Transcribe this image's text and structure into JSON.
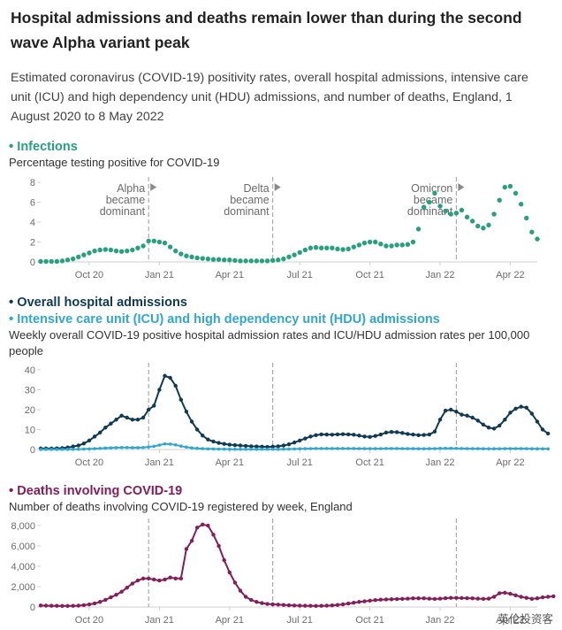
{
  "title": "Hospital admissions and deaths remain lower than during the second wave Alpha variant peak",
  "subtitle": "Estimated coronavirus (COVID-19) positivity rates, overall hospital admissions, intensive care unit (ICU) and high dependency unit (HDU) admissions, and number of deaths, England, 1 August 2020 to 8 May 2022",
  "watermark": "英伦投资客",
  "colors": {
    "infections": "#27a07f",
    "hospital": "#0f3a55",
    "icu": "#2fa7cf",
    "deaths": "#841d59",
    "axis": "#cfcfcf",
    "text": "#6b6b6b"
  },
  "x_ticks": [
    "Oct 20",
    "Jan 21",
    "Apr 21",
    "Jul 21",
    "Oct 21",
    "Jan 22",
    "Apr 22"
  ],
  "annotations": [
    {
      "label": [
        "Alpha",
        "became",
        "dominant"
      ],
      "date_index": 20
    },
    {
      "label": [
        "Delta",
        "became",
        "dominant"
      ],
      "date_index": 43
    },
    {
      "label": [
        "Omicron",
        "became",
        "dominant"
      ],
      "date_index": 77
    }
  ],
  "panels": {
    "infections": {
      "title": "Infections",
      "subtitle": "Percentage testing positive for COVID-19"
    },
    "hospital": {
      "title": "Overall hospital admissions",
      "title2": "Intensive care unit (ICU) and high dependency unit (HDU) admissions",
      "subtitle": "Weekly overall COVID-19 positive hospital admission rates and ICU/HDU admission rates per 100,000 people"
    },
    "deaths": {
      "title": "Deaths involving COVID-19",
      "subtitle": "Number of deaths involving COVID-19 registered by week, England"
    }
  },
  "chart_data": [
    {
      "type": "scatter",
      "title": "Infections",
      "x_start": "2020-08-01",
      "x_interval_weeks": 1,
      "ylim": [
        0,
        8
      ],
      "yticks": [
        0,
        2,
        4,
        6,
        8
      ],
      "series": [
        {
          "name": "Infections",
          "values": [
            0.05,
            0.05,
            0.05,
            0.05,
            0.1,
            0.2,
            0.3,
            0.5,
            0.7,
            0.9,
            1.1,
            1.2,
            1.25,
            1.2,
            1.1,
            1.05,
            1.1,
            1.2,
            1.4,
            1.6,
            2.1,
            2.1,
            2.0,
            1.9,
            1.5,
            1.1,
            0.8,
            0.6,
            0.5,
            0.4,
            0.35,
            0.3,
            0.25,
            0.25,
            0.2,
            0.2,
            0.15,
            0.1,
            0.1,
            0.1,
            0.1,
            0.1,
            0.1,
            0.15,
            0.2,
            0.3,
            0.5,
            0.7,
            0.95,
            1.2,
            1.4,
            1.45,
            1.4,
            1.4,
            1.4,
            1.3,
            1.25,
            1.3,
            1.5,
            1.7,
            1.9,
            2.0,
            2.0,
            1.8,
            1.6,
            1.6,
            1.7,
            1.7,
            1.75,
            2.0,
            3.3,
            5.5,
            6.0,
            6.9,
            5.6,
            5.1,
            4.8,
            4.9,
            5.2,
            4.5,
            4.1,
            3.6,
            3.4,
            3.7,
            4.8,
            6.2,
            7.5,
            7.6,
            6.9,
            5.8,
            4.4,
            3.0,
            2.3
          ]
        }
      ]
    },
    {
      "type": "scatter",
      "title": "Overall hospital admissions",
      "x_start": "2020-08-01",
      "x_interval_weeks": 1,
      "ylim": [
        0,
        40
      ],
      "yticks": [
        0,
        10,
        20,
        30,
        40
      ],
      "series": [
        {
          "name": "Overall hospital admissions",
          "values": [
            0.5,
            0.5,
            0.5,
            0.6,
            0.7,
            1.0,
            1.5,
            2.0,
            3.0,
            4.5,
            6.5,
            8.5,
            11,
            13,
            15,
            17,
            16,
            15,
            15,
            16,
            20,
            22,
            30,
            37,
            36,
            32,
            25,
            19,
            14,
            10,
            7,
            5,
            4,
            3.3,
            2.8,
            2.4,
            2.2,
            2.0,
            1.8,
            1.6,
            1.5,
            1.4,
            1.3,
            1.4,
            1.6,
            2.0,
            2.6,
            3.5,
            4.5,
            5.5,
            6.5,
            7.2,
            7.6,
            7.5,
            7.4,
            7.6,
            7.7,
            7.6,
            7.4,
            7.0,
            6.5,
            6.3,
            6.8,
            7.5,
            8.5,
            8.8,
            8.7,
            8.3,
            7.8,
            7.5,
            7.2,
            7.3,
            7.5,
            9,
            15,
            19.5,
            20,
            19,
            17.5,
            17,
            16,
            14.5,
            12.5,
            11,
            10.5,
            12,
            15,
            18.5,
            20.5,
            21.5,
            21,
            18,
            14,
            10,
            8
          ]
        },
        {
          "name": "Intensive care unit (ICU) and high dependency unit (HDU) admissions",
          "values": [
            0.05,
            0.05,
            0.05,
            0.05,
            0.06,
            0.08,
            0.1,
            0.15,
            0.2,
            0.3,
            0.4,
            0.55,
            0.7,
            0.8,
            0.9,
            1.0,
            1.0,
            0.9,
            0.9,
            1.0,
            1.3,
            1.6,
            2.2,
            2.8,
            2.7,
            2.3,
            1.7,
            1.2,
            0.8,
            0.6,
            0.4,
            0.3,
            0.25,
            0.2,
            0.2,
            0.15,
            0.15,
            0.15,
            0.15,
            0.12,
            0.12,
            0.12,
            0.12,
            0.12,
            0.15,
            0.18,
            0.22,
            0.28,
            0.35,
            0.4,
            0.45,
            0.5,
            0.5,
            0.5,
            0.48,
            0.48,
            0.5,
            0.5,
            0.48,
            0.45,
            0.42,
            0.4,
            0.42,
            0.45,
            0.5,
            0.5,
            0.48,
            0.45,
            0.42,
            0.4,
            0.38,
            0.38,
            0.4,
            0.45,
            0.55,
            0.6,
            0.6,
            0.55,
            0.5,
            0.45,
            0.42,
            0.4,
            0.38,
            0.35,
            0.35,
            0.38,
            0.4,
            0.45,
            0.45,
            0.45,
            0.42,
            0.38,
            0.35,
            0.32,
            0.3
          ]
        }
      ]
    },
    {
      "type": "scatter",
      "title": "Deaths involving COVID-19",
      "x_start": "2020-08-01",
      "x_interval_weeks": 1,
      "ylim": [
        0,
        8000
      ],
      "yticks": [
        0,
        2000,
        4000,
        6000,
        8000
      ],
      "series": [
        {
          "name": "Deaths involving COVID-19",
          "values": [
            150,
            130,
            120,
            110,
            100,
            100,
            110,
            130,
            180,
            250,
            350,
            500,
            700,
            950,
            1200,
            1500,
            1900,
            2300,
            2600,
            2800,
            2800,
            2700,
            2600,
            2700,
            2900,
            2800,
            2800,
            5700,
            6500,
            7800,
            8100,
            8000,
            7100,
            6000,
            4600,
            3400,
            2400,
            1600,
            1000,
            700,
            500,
            380,
            300,
            260,
            230,
            200,
            170,
            150,
            130,
            120,
            110,
            100,
            110,
            130,
            160,
            200,
            260,
            340,
            420,
            500,
            560,
            620,
            680,
            720,
            740,
            760,
            780,
            800,
            820,
            850,
            850,
            850,
            820,
            790,
            820,
            860,
            900,
            900,
            880,
            860,
            850,
            820,
            800,
            820,
            1000,
            1350,
            1400,
            1300,
            1150,
            1000,
            900,
            800,
            850,
            950,
            1000,
            1050
          ]
        }
      ]
    }
  ]
}
